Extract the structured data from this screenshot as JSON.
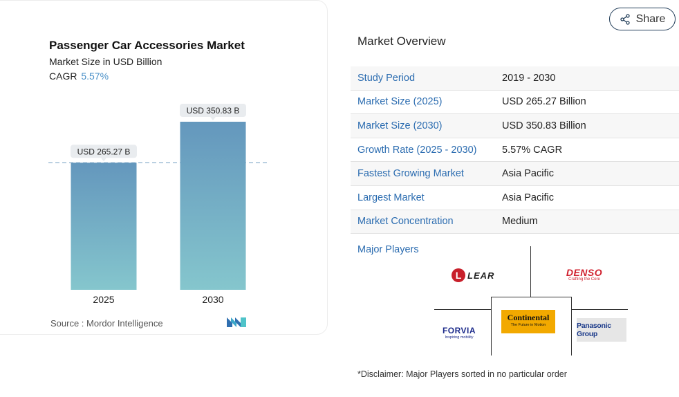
{
  "share": {
    "label": "Share",
    "icon": "share-icon"
  },
  "chart": {
    "title": "Passenger Car Accessories Market",
    "subtitle": "Market Size in USD Billion",
    "cagr_label": "CAGR",
    "cagr_value": "5.57%",
    "source": "Source :  Mordor Intelligence",
    "brand_icon": "mordor-intelligence-logo"
  },
  "chart_data": {
    "type": "bar",
    "title": "Passenger Car Accessories Market",
    "subtitle": "Market Size in USD Billion",
    "categories": [
      "2025",
      "2030"
    ],
    "values": [
      265.27,
      350.83
    ],
    "data_labels": [
      "USD 265.27 B",
      "USD 350.83 B"
    ],
    "ylim": [
      0,
      350.83
    ],
    "reference_line": 265.27,
    "grid": false,
    "colors": {
      "bar_top": "#6497bd",
      "bar_bottom": "#85c6cd",
      "ref_line": "#6f9bbf"
    }
  },
  "overview": {
    "title": "Market Overview",
    "rows": [
      {
        "label": "Study Period",
        "value": "2019 - 2030"
      },
      {
        "label": "Market Size (2025)",
        "value": "USD 265.27 Billion"
      },
      {
        "label": "Market Size (2030)",
        "value": "USD 350.83 Billion"
      },
      {
        "label": "Growth Rate (2025 - 2030)",
        "value": "5.57% CAGR"
      },
      {
        "label": "Fastest Growing Market",
        "value": "Asia Pacific"
      },
      {
        "label": "Largest Market",
        "value": "Asia Pacific"
      },
      {
        "label": "Market Concentration",
        "value": "Medium"
      }
    ]
  },
  "players": {
    "title": "Major Players",
    "logos": {
      "lear": "LEAR",
      "denso": "DENSO",
      "denso_tag": "Crafting the Core",
      "continental": "Continental",
      "continental_tag": "The Future in Motion",
      "forvia": "FORVIA",
      "forvia_tag": "Inspiring mobility",
      "panasonic": "Panasonic Group"
    }
  },
  "disclaimer": "*Disclaimer: Major Players sorted in no particular order",
  "colors": {
    "accent": "#2b6cb0",
    "share_border": "#1f3b57"
  }
}
